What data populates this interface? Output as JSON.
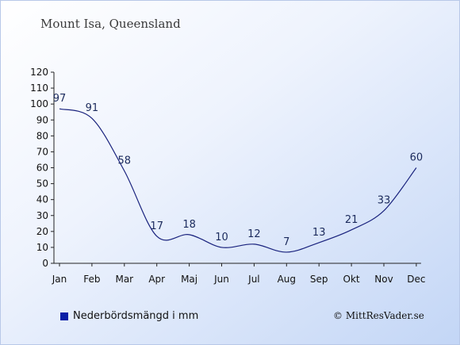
{
  "title": "Mount Isa, Queensland",
  "legend_label": "Nederbördsmängd i mm",
  "credit": "© MittResVader.se",
  "colors": {
    "line": "#1a237e",
    "legend_swatch": "#0b1fa6",
    "axis": "#222222"
  },
  "chart_data": {
    "type": "line",
    "title": "Mount Isa, Queensland",
    "categories": [
      "Jan",
      "Feb",
      "Mar",
      "Apr",
      "Maj",
      "Jun",
      "Jul",
      "Aug",
      "Sep",
      "Okt",
      "Nov",
      "Dec"
    ],
    "series": [
      {
        "name": "Nederbördsmängd i mm",
        "values": [
          97,
          91,
          58,
          17,
          18,
          10,
          12,
          7,
          13,
          21,
          33,
          60
        ]
      }
    ],
    "ylim": [
      0,
      120
    ],
    "yticks": [
      0,
      10,
      20,
      30,
      40,
      50,
      60,
      70,
      80,
      90,
      100,
      110,
      120
    ],
    "xlabel": "",
    "ylabel": "",
    "grid": false,
    "legend": "bottom-left"
  }
}
